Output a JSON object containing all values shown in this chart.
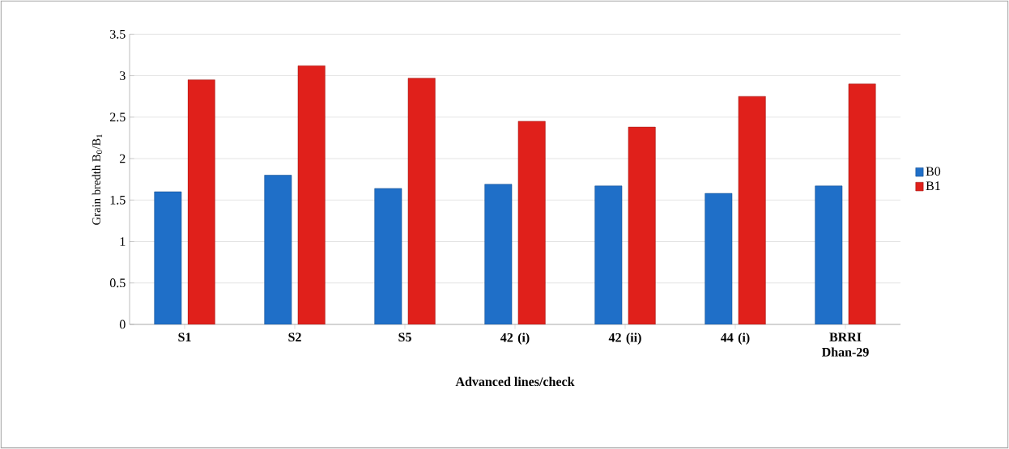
{
  "chart_data": {
    "type": "bar",
    "xlabel": "Advanced lines/check",
    "ylabel": "Grain bredth B$_{0}$/B$_{1}$",
    "categories": [
      "S1",
      "S2",
      "S5",
      "42 (i)",
      "42 (ii)",
      "44 (i)",
      "BRRI Dhan-29"
    ],
    "series": [
      {
        "name": "B0",
        "color": "#1f6fc8",
        "values": [
          1.6,
          1.8,
          1.64,
          1.69,
          1.67,
          1.58,
          1.67
        ]
      },
      {
        "name": "B1",
        "color": "#e0201b",
        "values": [
          2.95,
          3.12,
          2.97,
          2.45,
          2.38,
          2.75,
          2.9
        ]
      }
    ],
    "ylim": [
      0,
      3.5
    ],
    "yticks": [
      0,
      0.5,
      1,
      1.5,
      2,
      2.5,
      3,
      3.5
    ],
    "grid": "y",
    "legend": "right"
  }
}
